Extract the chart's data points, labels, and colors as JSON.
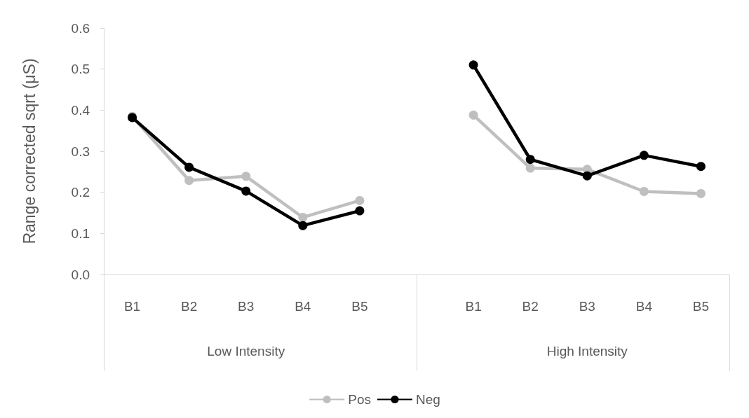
{
  "chart_data": {
    "type": "line",
    "ylabel": "Range corrected sqrt (μS)",
    "categories": [
      "B1",
      "B2",
      "B3",
      "B4",
      "B5",
      null,
      "B1",
      "B2",
      "B3",
      "B4",
      "B5"
    ],
    "series": [
      {
        "name": "Pos",
        "color": "#bfbfbf",
        "values": [
          0.385,
          0.229,
          0.239,
          0.139,
          0.18,
          null,
          0.388,
          0.259,
          0.256,
          0.202,
          0.197
        ]
      },
      {
        "name": "Neg",
        "color": "#000000",
        "values": [
          0.382,
          0.261,
          0.203,
          0.119,
          0.155,
          null,
          0.51,
          0.28,
          0.24,
          0.29,
          0.263
        ]
      }
    ],
    "ylim": [
      0,
      0.6
    ],
    "yticks": [
      {
        "value": 0,
        "label": "0.0"
      },
      0.1,
      0.2,
      0.3,
      0.4,
      0.5,
      0.6
    ],
    "annotations": [
      "Low Intensity",
      "High Intensity"
    ],
    "grid": false,
    "legend": "bottom",
    "marker": "circle",
    "line_style": "solid"
  }
}
